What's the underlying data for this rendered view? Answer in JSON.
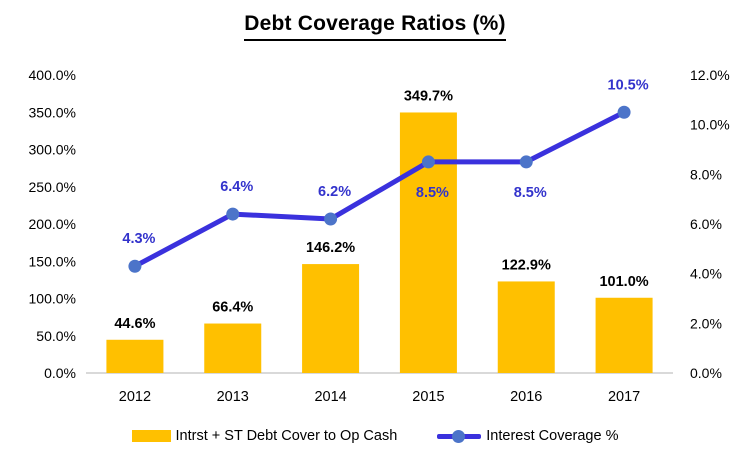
{
  "chart_data": {
    "type": "combo-bar-line",
    "title": "Debt Coverage Ratios (%)",
    "categories": [
      "2012",
      "2013",
      "2014",
      "2015",
      "2016",
      "2017"
    ],
    "series": [
      {
        "name": "Intrst + ST Debt Cover to Op Cash",
        "type": "bar",
        "axis": "left",
        "color": "#FFC000",
        "values": [
          44.6,
          66.4,
          146.2,
          349.7,
          122.9,
          101.0
        ],
        "labels": [
          "44.6%",
          "66.4%",
          "146.2%",
          "349.7%",
          "122.9%",
          "101.0%"
        ]
      },
      {
        "name": "Interest Coverage %",
        "type": "line",
        "axis": "right",
        "color": "#3A31DD",
        "marker_color": "#4C74C9",
        "label_color": "#3333CC",
        "values": [
          4.3,
          6.4,
          6.2,
          8.5,
          8.5,
          10.5
        ],
        "labels": [
          "4.3%",
          "6.4%",
          "6.2%",
          "8.5%",
          "8.5%",
          "10.5%"
        ],
        "label_positions": [
          "above",
          "above",
          "above",
          "below",
          "below",
          "above"
        ]
      }
    ],
    "left_axis": {
      "min": 0,
      "max": 400,
      "step": 50,
      "tick_labels": [
        "0.0%",
        "50.0%",
        "100.0%",
        "150.0%",
        "200.0%",
        "250.0%",
        "300.0%",
        "350.0%",
        "400.0%"
      ]
    },
    "right_axis": {
      "min": 0,
      "max": 12,
      "step": 2,
      "tick_labels": [
        "0.0%",
        "2.0%",
        "4.0%",
        "6.0%",
        "8.0%",
        "10.0%",
        "12.0%"
      ]
    },
    "axis_line_color": "#D9D9D9",
    "grid": false,
    "legend_position": "bottom"
  }
}
